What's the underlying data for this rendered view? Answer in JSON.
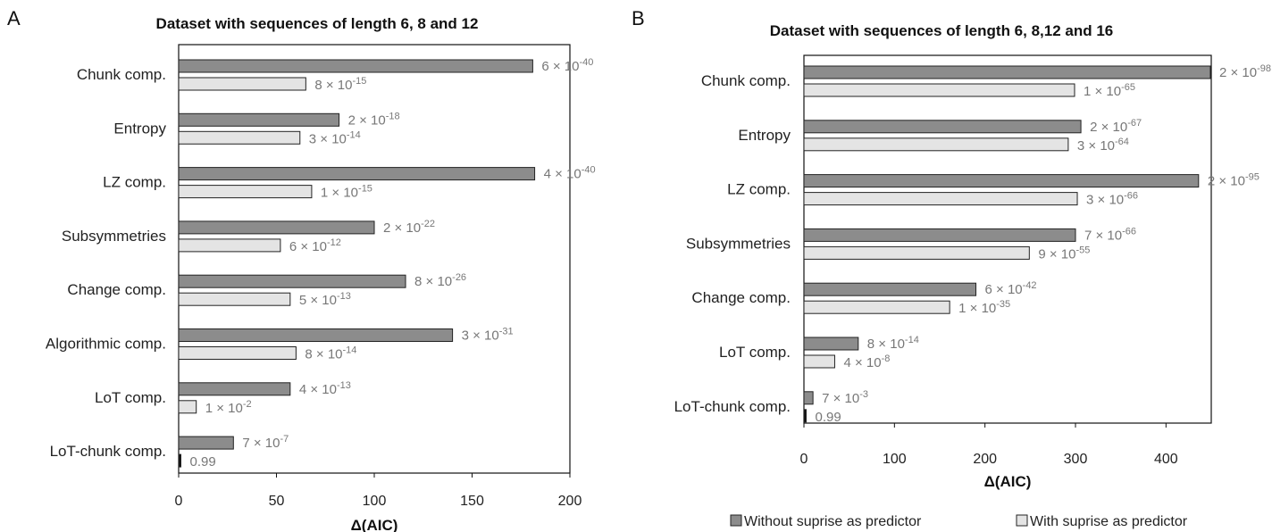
{
  "legend": {
    "series_a": "Without suprise as predictor",
    "series_b": "With suprise as predictor"
  },
  "colors": {
    "series_a": "#8c8c8c",
    "series_b": "#e4e4e4",
    "stroke": "#222222",
    "pvalue_text": "#777777"
  },
  "chart_data": [
    {
      "type": "bar",
      "orientation": "horizontal",
      "panel": "A",
      "title": "Dataset with sequences of length 6, 8 and 12",
      "xlabel": "Δ(AIC)",
      "xlim": [
        0,
        200
      ],
      "xticks": [
        0,
        50,
        100,
        150,
        200
      ],
      "grid": false,
      "legend_position": "bottom",
      "categories": [
        "Chunk comp.",
        "Entropy",
        "LZ comp.",
        "Subsymmetries",
        "Change comp.",
        "Algorithmic comp.",
        "LoT comp.",
        "LoT-chunk comp."
      ],
      "series": [
        {
          "name": "Without suprise as predictor",
          "values": [
            181,
            82,
            182,
            100,
            116,
            140,
            57,
            28
          ],
          "annotations": [
            {
              "m": "6",
              "e": "-40"
            },
            {
              "m": "2",
              "e": "-18"
            },
            {
              "m": "4",
              "e": "-40"
            },
            {
              "m": "2",
              "e": "-22"
            },
            {
              "m": "8",
              "e": "-26"
            },
            {
              "m": "3",
              "e": "-31"
            },
            {
              "m": "4",
              "e": "-13"
            },
            {
              "m": "7",
              "e": "-7"
            }
          ]
        },
        {
          "name": "With suprise as predictor",
          "values": [
            65,
            62,
            68,
            52,
            57,
            60,
            9,
            0.3
          ],
          "annotations": [
            {
              "m": "8",
              "e": "-15"
            },
            {
              "m": "3",
              "e": "-14"
            },
            {
              "m": "1",
              "e": "-15"
            },
            {
              "m": "6",
              "e": "-12"
            },
            {
              "m": "5",
              "e": "-13"
            },
            {
              "m": "8",
              "e": "-14"
            },
            {
              "m": "1",
              "e": "-2"
            },
            {
              "plain": "0.99"
            }
          ]
        }
      ]
    },
    {
      "type": "bar",
      "orientation": "horizontal",
      "panel": "B",
      "title": "Dataset with sequences of length 6, 8,12 and 16",
      "xlabel": "Δ(AIC)",
      "xlim": [
        0,
        450
      ],
      "xticks": [
        0,
        100,
        200,
        300,
        400
      ],
      "grid": false,
      "legend_position": "bottom",
      "categories": [
        "Chunk comp.",
        "Entropy",
        "LZ comp.",
        "Subsymmetries",
        "Change comp.",
        "LoT comp.",
        "LoT-chunk comp."
      ],
      "series": [
        {
          "name": "Without suprise as predictor",
          "values": [
            449,
            306,
            436,
            300,
            190,
            60,
            10
          ],
          "annotations": [
            {
              "m": "2",
              "e": "-98"
            },
            {
              "m": "2",
              "e": "-67"
            },
            {
              "m": "2",
              "e": "-95"
            },
            {
              "m": "7",
              "e": "-66"
            },
            {
              "m": "6",
              "e": "-42"
            },
            {
              "m": "8",
              "e": "-14"
            },
            {
              "m": "7",
              "e": "-3"
            }
          ]
        },
        {
          "name": "With suprise as predictor",
          "values": [
            299,
            292,
            302,
            249,
            161,
            34,
            0.6
          ],
          "annotations": [
            {
              "m": "1",
              "e": "-65"
            },
            {
              "m": "3",
              "e": "-64"
            },
            {
              "m": "3",
              "e": "-66"
            },
            {
              "m": "9",
              "e": "-55"
            },
            {
              "m": "1",
              "e": "-35"
            },
            {
              "m": "4",
              "e": "-8"
            },
            {
              "plain": "0.99"
            }
          ]
        }
      ]
    }
  ]
}
